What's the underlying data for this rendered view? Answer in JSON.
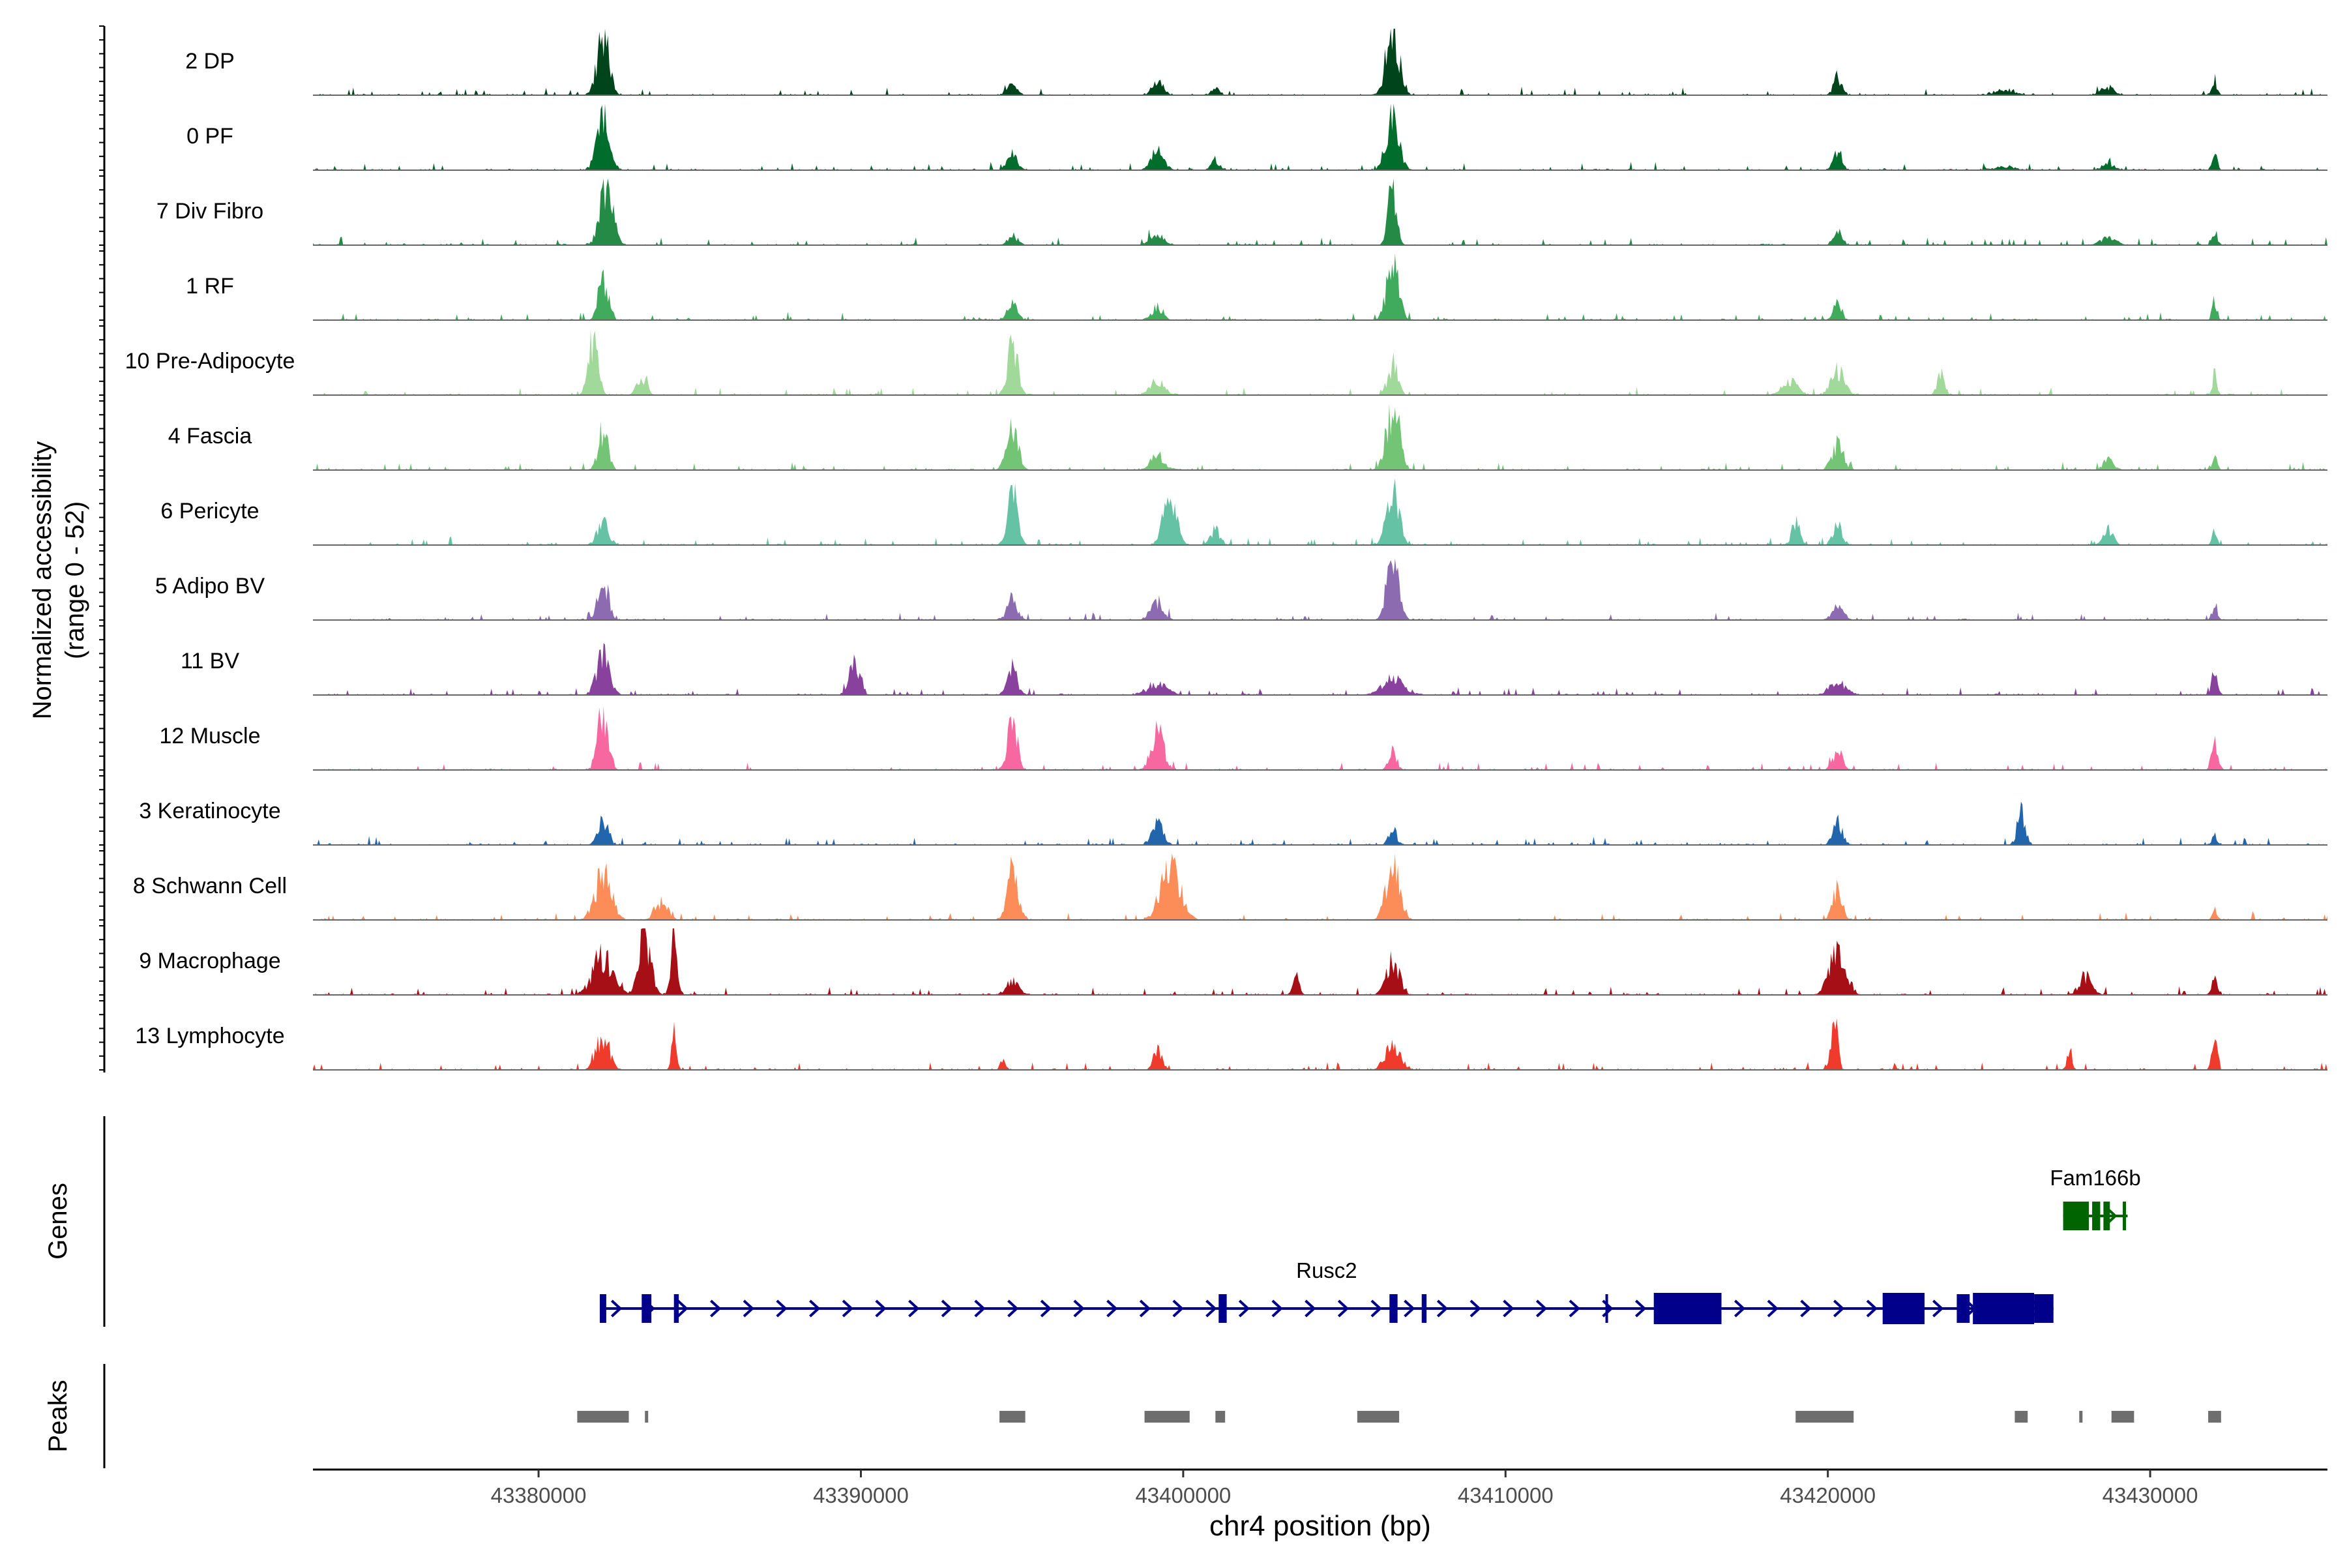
{
  "chart_data": {
    "type": "area",
    "title": "",
    "chromosome": "chr4",
    "xlabel": "chr4 position (bp)",
    "ylabel": "Normalized accessibility",
    "ylabel_range": "(range 0 - 52)",
    "y_range": [
      0,
      52
    ],
    "xlim": [
      43373000,
      43435500
    ],
    "x_ticks": [
      43380000,
      43390000,
      43400000,
      43410000,
      43420000,
      43430000
    ],
    "x_tick_labels": [
      "43380000",
      "43390000",
      "43400000",
      "43410000",
      "43420000",
      "43430000"
    ],
    "track_labels": {
      "genes": "Genes",
      "peaks": "Peaks"
    },
    "series": [
      {
        "name": "2 DP",
        "color": "#00441b",
        "peaks": [
          [
            43382000,
            48,
            350
          ],
          [
            43394700,
            10,
            300
          ],
          [
            43399200,
            12,
            320
          ],
          [
            43401000,
            5,
            250
          ],
          [
            43406500,
            52,
            400
          ],
          [
            43420300,
            14,
            250
          ],
          [
            43425500,
            4,
            600
          ],
          [
            43428700,
            6,
            400
          ],
          [
            43432000,
            12,
            150
          ]
        ]
      },
      {
        "name": "0 PF",
        "color": "#006d2c",
        "peaks": [
          [
            43382000,
            40,
            380
          ],
          [
            43394700,
            14,
            300
          ],
          [
            43399200,
            14,
            380
          ],
          [
            43401000,
            8,
            250
          ],
          [
            43406500,
            48,
            380
          ],
          [
            43420300,
            16,
            250
          ],
          [
            43425500,
            3,
            600
          ],
          [
            43428700,
            5,
            400
          ],
          [
            43432000,
            14,
            150
          ]
        ]
      },
      {
        "name": "7 Div Fibro",
        "color": "#238b45",
        "peaks": [
          [
            43382100,
            50,
            380
          ],
          [
            43394700,
            8,
            300
          ],
          [
            43399200,
            8,
            450
          ],
          [
            43406500,
            46,
            260
          ],
          [
            43420300,
            12,
            250
          ],
          [
            43428700,
            5,
            500
          ],
          [
            43432000,
            12,
            150
          ]
        ]
      },
      {
        "name": "1 RF",
        "color": "#41ab5d",
        "peaks": [
          [
            43382000,
            32,
            300
          ],
          [
            43394700,
            14,
            300
          ],
          [
            43399200,
            10,
            320
          ],
          [
            43406500,
            52,
            350
          ],
          [
            43420300,
            14,
            250
          ],
          [
            43432000,
            14,
            150
          ]
        ]
      },
      {
        "name": "10 Pre-Adipocyte",
        "color": "#a1d99b",
        "peaks": [
          [
            43381700,
            46,
            300
          ],
          [
            43383200,
            14,
            300
          ],
          [
            43394700,
            44,
            300
          ],
          [
            43399200,
            10,
            450
          ],
          [
            43406500,
            24,
            300
          ],
          [
            43418800,
            12,
            450
          ],
          [
            43420300,
            20,
            400
          ],
          [
            43423500,
            16,
            220
          ],
          [
            43432000,
            16,
            150
          ]
        ]
      },
      {
        "name": "4 Fascia",
        "color": "#74c476",
        "peaks": [
          [
            43382000,
            30,
            300
          ],
          [
            43394700,
            30,
            350
          ],
          [
            43399200,
            12,
            400
          ],
          [
            43406500,
            48,
            400
          ],
          [
            43420300,
            20,
            350
          ],
          [
            43428700,
            8,
            300
          ],
          [
            43432000,
            12,
            150
          ]
        ]
      },
      {
        "name": "6 Pericyte",
        "color": "#66c2a4",
        "peaks": [
          [
            43382000,
            18,
            350
          ],
          [
            43394700,
            44,
            300
          ],
          [
            43399600,
            40,
            400
          ],
          [
            43401000,
            12,
            300
          ],
          [
            43406500,
            50,
            350
          ],
          [
            43419000,
            18,
            250
          ],
          [
            43420300,
            14,
            300
          ],
          [
            43428700,
            12,
            300
          ],
          [
            43432000,
            12,
            150
          ]
        ]
      },
      {
        "name": "5 Adipo BV",
        "color": "#8c6bb1",
        "peaks": [
          [
            43382000,
            34,
            320
          ],
          [
            43394700,
            16,
            300
          ],
          [
            43399200,
            12,
            400
          ],
          [
            43406500,
            52,
            350
          ],
          [
            43420300,
            10,
            350
          ],
          [
            43432000,
            12,
            150
          ]
        ]
      },
      {
        "name": "11 BV",
        "color": "#88419d",
        "peaks": [
          [
            43382000,
            30,
            400
          ],
          [
            43389800,
            28,
            300
          ],
          [
            43394700,
            20,
            300
          ],
          [
            43399200,
            8,
            600
          ],
          [
            43406500,
            12,
            700
          ],
          [
            43420300,
            10,
            500
          ],
          [
            43432000,
            22,
            150
          ]
        ]
      },
      {
        "name": "12 Muscle",
        "color": "#f768a1",
        "peaks": [
          [
            43382000,
            46,
            320
          ],
          [
            43394700,
            48,
            280
          ],
          [
            43399200,
            28,
            400
          ],
          [
            43406500,
            14,
            250
          ],
          [
            43420300,
            14,
            300
          ],
          [
            43432000,
            20,
            200
          ]
        ]
      },
      {
        "name": "3 Keratinocyte",
        "color": "#2166ac",
        "peaks": [
          [
            43382000,
            20,
            300
          ],
          [
            43399200,
            16,
            350
          ],
          [
            43406500,
            12,
            250
          ],
          [
            43420300,
            18,
            300
          ],
          [
            43426000,
            24,
            250
          ],
          [
            43432000,
            8,
            150
          ]
        ]
      },
      {
        "name": "8 Schwann Cell",
        "color": "#fc8d59",
        "peaks": [
          [
            43382000,
            34,
            500
          ],
          [
            43383800,
            14,
            400
          ],
          [
            43394700,
            36,
            350
          ],
          [
            43399600,
            40,
            600
          ],
          [
            43406500,
            42,
            400
          ],
          [
            43420300,
            22,
            300
          ],
          [
            43432000,
            10,
            150
          ]
        ]
      },
      {
        "name": "9 Macrophage",
        "color": "#a50f15",
        "peaks": [
          [
            43382000,
            30,
            600
          ],
          [
            43383300,
            48,
            350
          ],
          [
            43384200,
            44,
            200
          ],
          [
            43394700,
            10,
            400
          ],
          [
            43403500,
            14,
            200
          ],
          [
            43406500,
            26,
            400
          ],
          [
            43420300,
            32,
            500
          ],
          [
            43428000,
            14,
            400
          ],
          [
            43432000,
            16,
            150
          ]
        ]
      },
      {
        "name": "13 Lymphocyte",
        "color": "#ef3b2c",
        "peaks": [
          [
            43382000,
            26,
            400
          ],
          [
            43384200,
            34,
            150
          ],
          [
            43394400,
            8,
            150
          ],
          [
            43399200,
            16,
            250
          ],
          [
            43406500,
            16,
            500
          ],
          [
            43420200,
            40,
            200
          ],
          [
            43427500,
            16,
            150
          ],
          [
            43432000,
            30,
            150
          ]
        ]
      }
    ],
    "genes": [
      {
        "name": "Rusc2",
        "color": "#00008b",
        "start": 43381900,
        "end": 43427000,
        "strand": "+",
        "exons": [
          [
            43381900,
            43382100
          ],
          [
            43383200,
            43383500
          ],
          [
            43384200,
            43384350
          ],
          [
            43401100,
            43401350
          ],
          [
            43406400,
            43406650
          ],
          [
            43407400,
            43407550
          ],
          [
            43413100,
            43413160
          ],
          [
            43414600,
            43416700
          ],
          [
            43421700,
            43423000
          ],
          [
            43424000,
            43424400
          ],
          [
            43424500,
            43426400
          ],
          [
            43426400,
            43427000
          ]
        ]
      },
      {
        "name": "Fam166b",
        "color": "#006400",
        "start": 43427300,
        "end": 43429300,
        "strand": "+",
        "exons": [
          [
            43427300,
            43428100
          ],
          [
            43428200,
            43428450
          ],
          [
            43428550,
            43428750
          ],
          [
            43429150,
            43429250
          ]
        ]
      }
    ],
    "peak_regions": [
      [
        43381200,
        43382800
      ],
      [
        43383300,
        43383400
      ],
      [
        43394300,
        43395100
      ],
      [
        43398800,
        43400200
      ],
      [
        43401000,
        43401300
      ],
      [
        43405400,
        43406700
      ],
      [
        43419000,
        43420800
      ],
      [
        43425800,
        43426200
      ],
      [
        43427800,
        43427900
      ],
      [
        43428800,
        43429500
      ],
      [
        43431800,
        43432200
      ]
    ]
  }
}
